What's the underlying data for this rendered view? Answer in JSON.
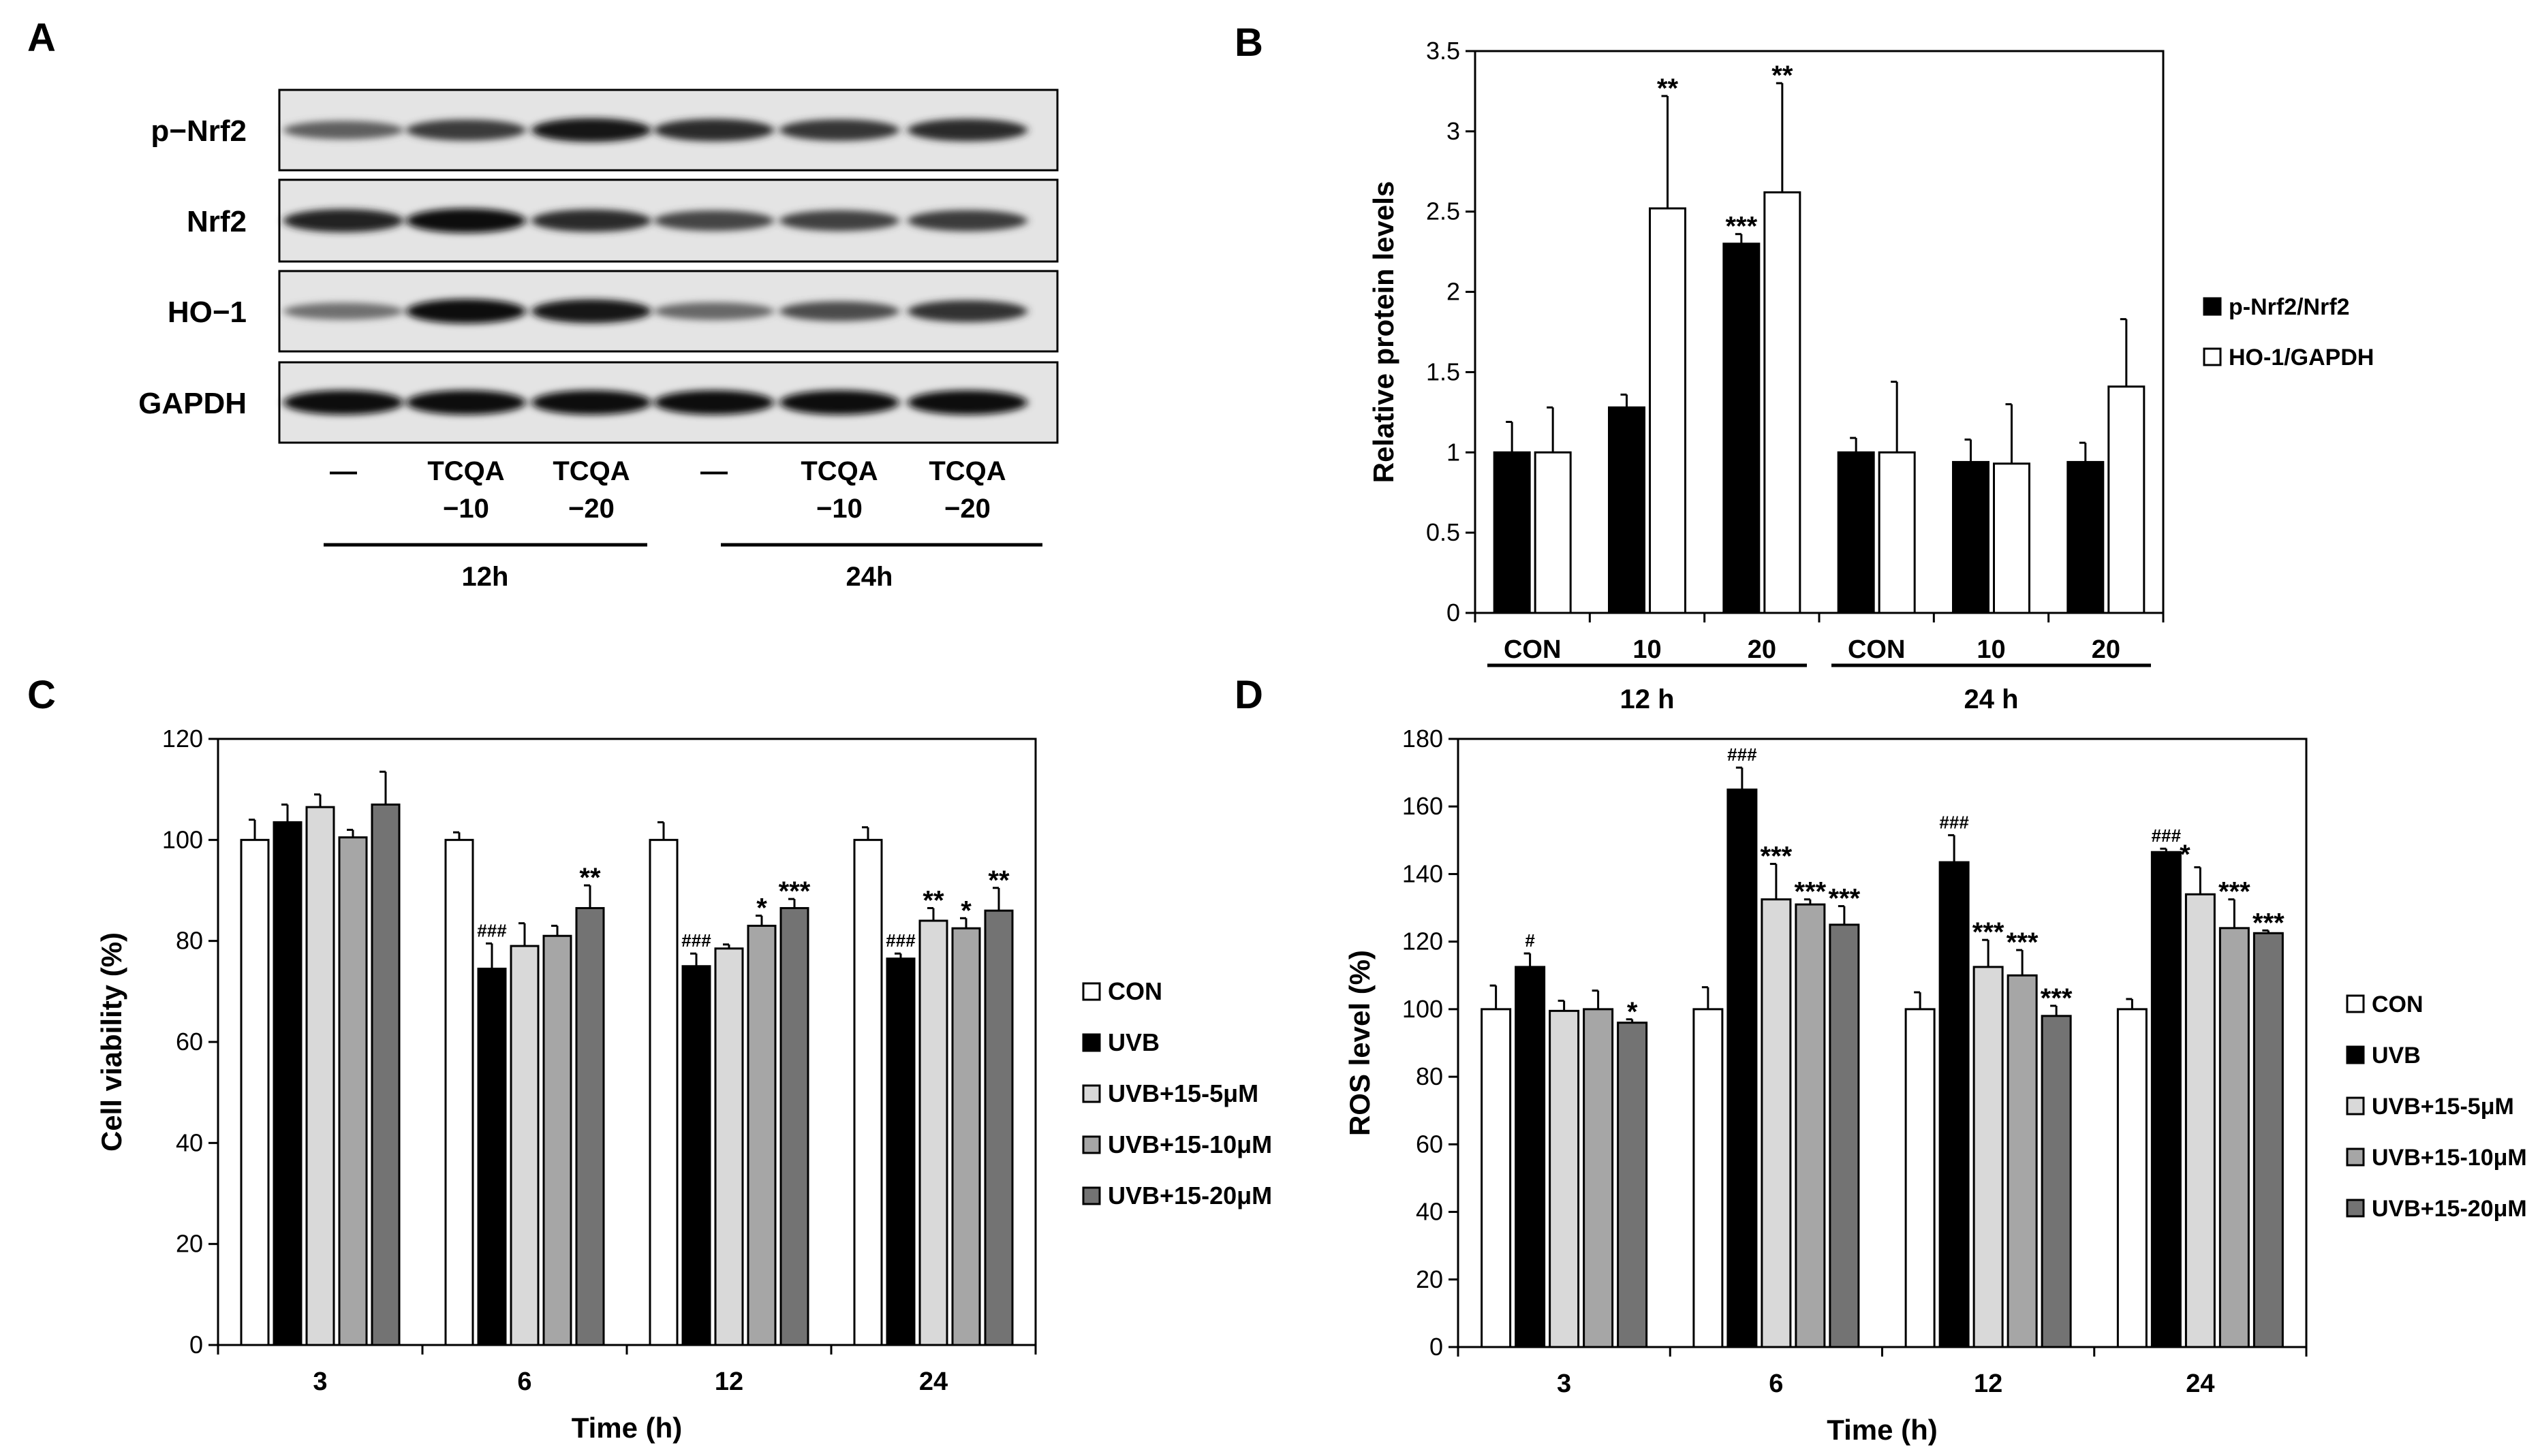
{
  "panel_labels": [
    "A",
    "B",
    "C",
    "D"
  ],
  "blot": {
    "bands": [
      {
        "label": "p−Nrf2",
        "intensity": [
          0.55,
          0.75,
          0.95,
          0.85,
          0.78,
          0.85
        ]
      },
      {
        "label": "Nrf2",
        "intensity": [
          0.9,
          1.0,
          0.85,
          0.7,
          0.72,
          0.75
        ]
      },
      {
        "label": "HO−1",
        "intensity": [
          0.45,
          1.0,
          0.95,
          0.5,
          0.65,
          0.8
        ]
      },
      {
        "label": "GAPDH",
        "intensity": [
          1.0,
          1.0,
          1.0,
          1.0,
          1.0,
          1.0
        ]
      }
    ],
    "lanes": [
      {
        "line1": "—",
        "line2": ""
      },
      {
        "line1": "TCQA",
        "line2": "−10"
      },
      {
        "line1": "TCQA",
        "line2": "−20"
      },
      {
        "line1": "—",
        "line2": ""
      },
      {
        "line1": "TCQA",
        "line2": "−10"
      },
      {
        "line1": "TCQA",
        "line2": "−20"
      }
    ],
    "groups": [
      "12h",
      "24h"
    ]
  },
  "chart_data": [
    {
      "panel": "B",
      "type": "bar",
      "title": "",
      "xlabel": "",
      "ylabel": "Relative protein levels",
      "ylim": [
        0,
        3.5
      ],
      "yticks": [
        0,
        0.5,
        1,
        1.5,
        2,
        2.5,
        3,
        3.5
      ],
      "ytick_labels": [
        "0",
        "0.5",
        "1",
        "1.5",
        "2",
        "2.5",
        "3",
        "3.5"
      ],
      "categories": [
        "CON",
        "10",
        "20",
        "CON",
        "10",
        "20"
      ],
      "groups": [
        {
          "label": "12 h",
          "from": 0,
          "to": 2
        },
        {
          "label": "24 h",
          "from": 3,
          "to": 5
        }
      ],
      "legend_position": "right",
      "series": [
        {
          "name": "p-Nrf2/Nrf2",
          "color": "#000000",
          "values": [
            1.0,
            1.28,
            2.3,
            1.0,
            0.94,
            0.94
          ],
          "errors": [
            0.19,
            0.08,
            0.06,
            0.09,
            0.14,
            0.12
          ],
          "annotations": [
            "",
            "",
            "***",
            "",
            "",
            ""
          ]
        },
        {
          "name": "HO-1/GAPDH",
          "color": "#ffffff",
          "values": [
            1.0,
            2.52,
            2.62,
            1.0,
            0.93,
            1.41
          ],
          "errors": [
            0.28,
            0.7,
            0.68,
            0.44,
            0.37,
            0.42
          ],
          "annotations": [
            "",
            "**",
            "**",
            "",
            "",
            ""
          ]
        }
      ]
    },
    {
      "panel": "C",
      "type": "bar",
      "title": "",
      "xlabel": "Time (h)",
      "ylabel": "Cell viability (%)",
      "ylim": [
        0,
        120
      ],
      "yticks": [
        0,
        20,
        40,
        60,
        80,
        100,
        120
      ],
      "ytick_labels": [
        "0",
        "20",
        "40",
        "60",
        "80",
        "100",
        "120"
      ],
      "categories": [
        "3",
        "6",
        "12",
        "24"
      ],
      "legend_position": "right",
      "series": [
        {
          "name": "CON",
          "color": "#ffffff",
          "values": [
            100,
            100,
            100,
            100
          ],
          "errors": [
            4,
            1.5,
            3.5,
            2.5
          ],
          "annotations": [
            "",
            "",
            "",
            ""
          ]
        },
        {
          "name": "UVB",
          "color": "#000000",
          "values": [
            103.5,
            74.5,
            75,
            76.5
          ],
          "errors": [
            3.5,
            5,
            2.5,
            1
          ],
          "annotations": [
            "",
            "###",
            "###",
            "###"
          ]
        },
        {
          "name": "UVB+15-5μM",
          "color": "#d9d9d9",
          "values": [
            106.5,
            79,
            78.5,
            84
          ],
          "errors": [
            2.5,
            4.5,
            0.8,
            2.5
          ],
          "annotations": [
            "",
            "",
            "",
            "**"
          ]
        },
        {
          "name": "UVB+15-10μM",
          "color": "#a6a6a6",
          "values": [
            100.5,
            81,
            83,
            82.5
          ],
          "errors": [
            1.5,
            2,
            2,
            2
          ],
          "annotations": [
            "",
            "",
            "*",
            "*"
          ]
        },
        {
          "name": "UVB+15-20μM",
          "color": "#737373",
          "values": [
            107,
            86.5,
            86.5,
            86
          ],
          "errors": [
            6.5,
            4.5,
            1.8,
            4.5
          ],
          "annotations": [
            "",
            "**",
            "***",
            "**"
          ]
        }
      ]
    },
    {
      "panel": "D",
      "type": "bar",
      "title": "",
      "xlabel": "Time (h)",
      "ylabel": "ROS level (%)",
      "ylim": [
        0,
        180
      ],
      "yticks": [
        0,
        20,
        40,
        60,
        80,
        100,
        120,
        140,
        160,
        180
      ],
      "ytick_labels": [
        "0",
        "20",
        "40",
        "60",
        "80",
        "100",
        "120",
        "140",
        "160",
        "180"
      ],
      "categories": [
        "3",
        "6",
        "12",
        "24"
      ],
      "legend_position": "right",
      "series": [
        {
          "name": "CON",
          "color": "#ffffff",
          "values": [
            100,
            100,
            100,
            100
          ],
          "errors": [
            7,
            6.5,
            5,
            3
          ],
          "annotations": [
            "",
            "",
            "",
            ""
          ]
        },
        {
          "name": "UVB",
          "color": "#000000",
          "values": [
            112.5,
            165,
            143.5,
            146.5
          ],
          "errors": [
            4,
            6.5,
            8,
            1
          ],
          "annotations": [
            "#",
            "###",
            "###",
            "###"
          ]
        },
        {
          "name": "UVB+15-5μM",
          "color": "#d9d9d9",
          "values": [
            99.5,
            132.5,
            112.5,
            134
          ],
          "errors": [
            3,
            10.5,
            8,
            8
          ],
          "annotations": [
            "",
            "***",
            "***",
            ""
          ]
        },
        {
          "name": "UVB+15-10μM",
          "color": "#a6a6a6",
          "values": [
            100,
            131,
            110,
            124
          ],
          "errors": [
            5.5,
            1.5,
            7.5,
            8.5
          ],
          "annotations": [
            "",
            "***",
            "***",
            "***"
          ]
        },
        {
          "name": "UVB+15-20μM",
          "color": "#737373",
          "values": [
            96,
            125,
            98,
            122.5
          ],
          "errors": [
            1,
            5.5,
            3,
            0.8
          ],
          "annotations": [
            "*",
            "***",
            "***",
            "***"
          ]
        }
      ],
      "extra_annotations": [
        {
          "category": 3,
          "series": 1,
          "text": "*"
        }
      ]
    }
  ]
}
